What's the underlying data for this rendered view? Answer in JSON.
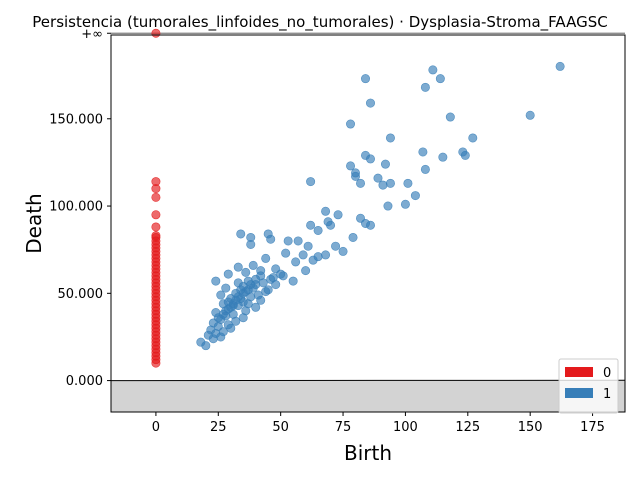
{
  "chart_data": {
    "type": "scatter",
    "title": "Persistencia (tumorales_linfoides_no_tumorales) · Dysplasia-Stroma_FAAGSC",
    "xlabel": "Birth",
    "ylabel": "Death",
    "xlim": [
      -18,
      188
    ],
    "ylim": [
      -18000,
      198000
    ],
    "x_ticks": [
      {
        "value": 0,
        "label": "0"
      },
      {
        "value": 25,
        "label": "25"
      },
      {
        "value": 50,
        "label": "50"
      },
      {
        "value": 75,
        "label": "75"
      },
      {
        "value": 100,
        "label": "100"
      },
      {
        "value": 125,
        "label": "125"
      },
      {
        "value": 150,
        "label": "150"
      },
      {
        "value": 175,
        "label": "175"
      }
    ],
    "y_ticks": [
      {
        "value": 0,
        "label": "0.000"
      },
      {
        "value": 50000,
        "label": "50.000"
      },
      {
        "value": 100000,
        "label": "100.000"
      },
      {
        "value": 150000,
        "label": "150.000"
      }
    ],
    "infinity_level": 199000,
    "infinity_label": "+∞",
    "legend_position": "lower-right",
    "grid": false,
    "diagonal": true,
    "series": [
      {
        "name": "0",
        "color": "#e41a1c",
        "points": [
          [
            0,
            199000
          ],
          [
            0,
            114000
          ],
          [
            0,
            110000
          ],
          [
            0,
            105000
          ],
          [
            0,
            95000
          ],
          [
            0,
            88000
          ],
          [
            0,
            83000
          ],
          [
            0,
            82000
          ],
          [
            0,
            80000
          ],
          [
            0,
            78000
          ],
          [
            0,
            76000
          ],
          [
            0,
            74000
          ],
          [
            0,
            72000
          ],
          [
            0,
            70000
          ],
          [
            0,
            68000
          ],
          [
            0,
            66000
          ],
          [
            0,
            64000
          ],
          [
            0,
            62000
          ],
          [
            0,
            60000
          ],
          [
            0,
            58000
          ],
          [
            0,
            56000
          ],
          [
            0,
            54000
          ],
          [
            0,
            52000
          ],
          [
            0,
            50000
          ],
          [
            0,
            48000
          ],
          [
            0,
            46000
          ],
          [
            0,
            44000
          ],
          [
            0,
            42000
          ],
          [
            0,
            40000
          ],
          [
            0,
            38000
          ],
          [
            0,
            36000
          ],
          [
            0,
            34000
          ],
          [
            0,
            32000
          ],
          [
            0,
            30000
          ],
          [
            0,
            28000
          ],
          [
            0,
            26000
          ],
          [
            0,
            24000
          ],
          [
            0,
            22000
          ],
          [
            0,
            20000
          ],
          [
            0,
            18000
          ],
          [
            0,
            16000
          ],
          [
            0,
            14000
          ],
          [
            0,
            12000
          ],
          [
            0,
            10000
          ]
        ]
      },
      {
        "name": "1",
        "color": "#377eb8",
        "points": [
          [
            162,
            180000
          ],
          [
            111,
            178000
          ],
          [
            84,
            173000
          ],
          [
            114,
            173000
          ],
          [
            108,
            168000
          ],
          [
            86,
            159000
          ],
          [
            150,
            152000
          ],
          [
            118,
            151000
          ],
          [
            78,
            147000
          ],
          [
            94,
            139000
          ],
          [
            127,
            139000
          ],
          [
            107,
            131000
          ],
          [
            123,
            131000
          ],
          [
            84,
            129000
          ],
          [
            124,
            129000
          ],
          [
            86,
            127000
          ],
          [
            115,
            128000
          ],
          [
            92,
            124000
          ],
          [
            78,
            123000
          ],
          [
            108,
            121000
          ],
          [
            80,
            119000
          ],
          [
            80,
            117000
          ],
          [
            89,
            116000
          ],
          [
            62,
            114000
          ],
          [
            82,
            113000
          ],
          [
            91,
            112000
          ],
          [
            94,
            113000
          ],
          [
            101,
            113000
          ],
          [
            104,
            106000
          ],
          [
            100,
            101000
          ],
          [
            93,
            100000
          ],
          [
            68,
            97000
          ],
          [
            73,
            95000
          ],
          [
            82,
            93000
          ],
          [
            69,
            91000
          ],
          [
            84,
            90000
          ],
          [
            62,
            89000
          ],
          [
            70,
            89000
          ],
          [
            86,
            89000
          ],
          [
            65,
            86000
          ],
          [
            34,
            84000
          ],
          [
            45,
            84000
          ],
          [
            38,
            82000
          ],
          [
            46,
            81000
          ],
          [
            79,
            82000
          ],
          [
            53,
            80000
          ],
          [
            57,
            80000
          ],
          [
            38,
            78000
          ],
          [
            61,
            77000
          ],
          [
            72,
            77000
          ],
          [
            75,
            74000
          ],
          [
            52,
            73000
          ],
          [
            59,
            72000
          ],
          [
            68,
            72000
          ],
          [
            65,
            71000
          ],
          [
            44,
            70000
          ],
          [
            63,
            69000
          ],
          [
            56,
            68000
          ],
          [
            39,
            66000
          ],
          [
            33,
            65000
          ],
          [
            48,
            64000
          ],
          [
            42,
            63000
          ],
          [
            60,
            63000
          ],
          [
            36,
            62000
          ],
          [
            29,
            61000
          ],
          [
            51,
            60000
          ],
          [
            46,
            58000
          ],
          [
            55,
            57000
          ],
          [
            24,
            57000
          ],
          [
            33,
            56000
          ],
          [
            40,
            55000
          ],
          [
            28,
            53000
          ],
          [
            37,
            52000
          ],
          [
            44,
            51000
          ],
          [
            32,
            50000
          ],
          [
            26,
            49000
          ],
          [
            38,
            48000
          ],
          [
            30,
            47000
          ],
          [
            42,
            46000
          ],
          [
            35,
            45000
          ],
          [
            27,
            44000
          ],
          [
            33,
            43000
          ],
          [
            40,
            42000
          ],
          [
            29,
            41000
          ],
          [
            36,
            40000
          ],
          [
            24,
            39000
          ],
          [
            31,
            38000
          ],
          [
            28,
            37000
          ],
          [
            35,
            36000
          ],
          [
            26,
            35000
          ],
          [
            32,
            34000
          ],
          [
            23,
            33000
          ],
          [
            29,
            32000
          ],
          [
            25,
            31000
          ],
          [
            30,
            30000
          ],
          [
            22,
            29000
          ],
          [
            27,
            28000
          ],
          [
            24,
            27000
          ],
          [
            21,
            26000
          ],
          [
            26,
            25000
          ],
          [
            23,
            24000
          ],
          [
            18,
            22000
          ],
          [
            20,
            20000
          ],
          [
            34,
            47000
          ],
          [
            37,
            44000
          ],
          [
            41,
            49000
          ],
          [
            45,
            52000
          ],
          [
            48,
            55000
          ],
          [
            31,
            43000
          ],
          [
            35,
            50000
          ],
          [
            39,
            53000
          ],
          [
            43,
            56000
          ],
          [
            47,
            59000
          ],
          [
            50,
            61000
          ],
          [
            29,
            45000
          ],
          [
            33,
            48000
          ],
          [
            36,
            51000
          ],
          [
            40,
            58000
          ],
          [
            25,
            36000
          ],
          [
            28,
            40000
          ],
          [
            32,
            46000
          ],
          [
            38,
            55000
          ],
          [
            42,
            60000
          ],
          [
            30,
            42000
          ],
          [
            34,
            52000
          ],
          [
            37,
            57000
          ],
          [
            27,
            38000
          ],
          [
            31,
            44000
          ],
          [
            35,
            54000
          ]
        ]
      }
    ]
  }
}
